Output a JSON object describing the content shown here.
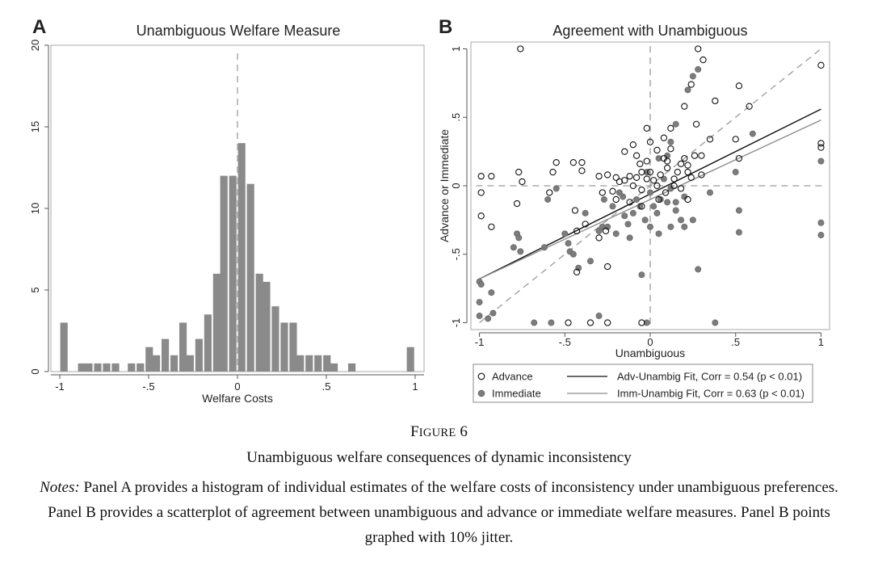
{
  "figure": {
    "label_first": "F",
    "label_rest": "IGURE",
    "label_number": "6",
    "title": "Unambiguous welfare consequences of dynamic inconsistency",
    "notes_lead": "Notes:",
    "notes_text": "Panel A provides a histogram of individual estimates of the welfare costs of inconsistency under unambiguous preferences. Panel B provides a scatterplot of agreement between unambiguous and advance or immediate welfare measures. Panel B points graphed with 10% jitter."
  },
  "chart_data": [
    {
      "type": "bar",
      "panel_letter": "A",
      "title": "Unambiguous Welfare Measure",
      "xlabel": "Welfare Costs",
      "ylabel": "",
      "xlim": [
        -1.05,
        1.05
      ],
      "ylim": [
        0,
        20
      ],
      "x_ticks": [
        "-1",
        "-.5",
        "0",
        ".5",
        "1"
      ],
      "y_ticks": [
        "0",
        "5",
        "10",
        "15",
        "20"
      ],
      "bin_width": 0.048,
      "reference_line_x": 0,
      "bar_color": "#8a8a8a",
      "bins_left": [
        -1.0,
        -0.9,
        -0.86,
        -0.81,
        -0.76,
        -0.71,
        -0.62,
        -0.57,
        -0.52,
        -0.48,
        -0.43,
        -0.38,
        -0.33,
        -0.29,
        -0.24,
        -0.19,
        -0.14,
        -0.1,
        -0.05,
        0.0,
        0.05,
        0.1,
        0.14,
        0.19,
        0.24,
        0.29,
        0.33,
        0.38,
        0.43,
        0.48,
        0.52,
        0.62,
        0.95
      ],
      "values": [
        3,
        0.5,
        0.5,
        0.5,
        0.5,
        0.5,
        0.5,
        0.5,
        1.5,
        1,
        2,
        1,
        3,
        1,
        2,
        3.5,
        6,
        12,
        12,
        14,
        11.5,
        6,
        5.5,
        4,
        3,
        3,
        1,
        1,
        1,
        1,
        0.5,
        0.5,
        1.5
      ]
    },
    {
      "type": "scatter",
      "panel_letter": "B",
      "title": "Agreement with Unambiguous",
      "xlabel": "Unambiguous",
      "ylabel": "Advance or Immediate",
      "xlim": [
        -1.05,
        1.05
      ],
      "ylim": [
        -1.05,
        1.05
      ],
      "x_ticks": [
        "-1",
        "-.5",
        "0",
        ".5",
        "1"
      ],
      "y_ticks": [
        "-1",
        "-.5",
        "0",
        ".5",
        "1"
      ],
      "reference_lines": {
        "x": 0,
        "y": 0,
        "diagonal": true
      },
      "series": [
        {
          "name": "Advance",
          "marker": "hollow-circle",
          "color": "#111111",
          "points": [
            [
              -0.99,
              0.07
            ],
            [
              -0.99,
              -0.05
            ],
            [
              -0.99,
              -0.22
            ],
            [
              -0.93,
              0.07
            ],
            [
              -0.93,
              -0.3
            ],
            [
              -0.76,
              1.0
            ],
            [
              -0.77,
              0.1
            ],
            [
              -0.75,
              0.03
            ],
            [
              -0.78,
              -0.13
            ],
            [
              -0.55,
              0.17
            ],
            [
              -0.57,
              0.1
            ],
            [
              -0.59,
              -0.05
            ],
            [
              -0.45,
              0.17
            ],
            [
              -0.44,
              -0.18
            ],
            [
              -0.4,
              0.17
            ],
            [
              -0.4,
              0.11
            ],
            [
              -0.38,
              -0.28
            ],
            [
              -0.43,
              -0.33
            ],
            [
              -0.43,
              -0.63
            ],
            [
              -0.3,
              0.07
            ],
            [
              -0.28,
              -0.05
            ],
            [
              -0.26,
              -0.33
            ],
            [
              -0.25,
              -0.59
            ],
            [
              -0.3,
              -0.38
            ],
            [
              -0.25,
              0.08
            ],
            [
              -0.2,
              0.06
            ],
            [
              -0.18,
              0.03
            ],
            [
              -0.22,
              -0.04
            ],
            [
              -0.15,
              0.04
            ],
            [
              -0.12,
              0.07
            ],
            [
              -0.1,
              0.0
            ],
            [
              -0.08,
              0.06
            ],
            [
              -0.05,
              0.1
            ],
            [
              -0.05,
              -0.03
            ],
            [
              -0.02,
              0.05
            ],
            [
              0.0,
              0.1
            ],
            [
              0.02,
              0.04
            ],
            [
              0.04,
              0.0
            ],
            [
              0.06,
              0.08
            ],
            [
              0.08,
              0.2
            ],
            [
              0.1,
              0.13
            ],
            [
              0.12,
              0.27
            ],
            [
              0.14,
              0.05
            ],
            [
              0.16,
              0.1
            ],
            [
              0.18,
              -0.02
            ],
            [
              0.2,
              0.2
            ],
            [
              0.22,
              0.15
            ],
            [
              0.24,
              0.06
            ],
            [
              0.26,
              0.22
            ],
            [
              0.27,
              0.45
            ],
            [
              0.3,
              0.22
            ],
            [
              0.31,
              0.92
            ],
            [
              0.28,
              1.0
            ],
            [
              0.24,
              0.74
            ],
            [
              0.2,
              0.58
            ],
            [
              0.38,
              0.62
            ],
            [
              0.35,
              0.34
            ],
            [
              0.3,
              0.08
            ],
            [
              0.52,
              0.73
            ],
            [
              0.58,
              0.58
            ],
            [
              0.5,
              0.34
            ],
            [
              0.52,
              0.2
            ],
            [
              1.0,
              0.88
            ],
            [
              1.0,
              0.31
            ],
            [
              1.0,
              0.28
            ],
            [
              -0.02,
              0.42
            ],
            [
              0.0,
              0.32
            ],
            [
              0.08,
              0.35
            ],
            [
              0.12,
              0.42
            ],
            [
              -0.1,
              0.3
            ],
            [
              -0.08,
              0.22
            ],
            [
              -0.15,
              0.25
            ],
            [
              0.05,
              -0.1
            ],
            [
              0.09,
              -0.05
            ],
            [
              -0.2,
              -0.1
            ],
            [
              -0.12,
              -0.12
            ],
            [
              -0.05,
              -0.15
            ],
            [
              -0.48,
              -1.0
            ],
            [
              -0.25,
              -1.0
            ],
            [
              -0.35,
              -1.0
            ],
            [
              -0.05,
              -1.0
            ],
            [
              0.22,
              0.1
            ],
            [
              0.18,
              0.16
            ],
            [
              0.14,
              0.0
            ],
            [
              -0.02,
              0.18
            ],
            [
              0.04,
              0.26
            ],
            [
              0.1,
              0.18
            ],
            [
              -0.06,
              0.16
            ],
            [
              0.22,
              -0.1
            ]
          ]
        },
        {
          "name": "Immediate",
          "marker": "filled-circle",
          "color": "#7c7c7c",
          "points": [
            [
              -1.0,
              -0.7
            ],
            [
              -0.99,
              -0.72
            ],
            [
              -1.0,
              -0.85
            ],
            [
              -1.0,
              -0.95
            ],
            [
              -0.95,
              -0.97
            ],
            [
              -0.92,
              -0.93
            ],
            [
              -0.93,
              -0.78
            ],
            [
              -0.8,
              -0.45
            ],
            [
              -0.78,
              -0.35
            ],
            [
              -0.77,
              -0.38
            ],
            [
              -0.76,
              -0.48
            ],
            [
              -0.62,
              -0.45
            ],
            [
              -0.6,
              -0.1
            ],
            [
              -0.55,
              -0.02
            ],
            [
              -0.5,
              -0.35
            ],
            [
              -0.48,
              -0.42
            ],
            [
              -0.47,
              -0.48
            ],
            [
              -0.45,
              -0.5
            ],
            [
              -0.42,
              -0.6
            ],
            [
              -0.38,
              -0.2
            ],
            [
              -0.35,
              -0.55
            ],
            [
              -0.3,
              -0.33
            ],
            [
              -0.28,
              -0.3
            ],
            [
              -0.27,
              -0.1
            ],
            [
              -0.25,
              -0.3
            ],
            [
              -0.2,
              -0.35
            ],
            [
              -0.16,
              -0.08
            ],
            [
              -0.13,
              -0.28
            ],
            [
              -0.12,
              -0.38
            ],
            [
              -0.1,
              -0.2
            ],
            [
              -0.08,
              -0.1
            ],
            [
              -0.06,
              -0.15
            ],
            [
              -0.03,
              -0.25
            ],
            [
              0.0,
              -0.05
            ],
            [
              0.02,
              -0.15
            ],
            [
              0.04,
              -0.2
            ],
            [
              0.06,
              -0.1
            ],
            [
              0.08,
              0.05
            ],
            [
              0.12,
              -0.02
            ],
            [
              0.15,
              -0.12
            ],
            [
              0.18,
              -0.25
            ],
            [
              0.2,
              -0.3
            ],
            [
              0.25,
              -0.25
            ],
            [
              0.28,
              -0.61
            ],
            [
              0.35,
              -0.05
            ],
            [
              0.38,
              -1.0
            ],
            [
              0.5,
              0.1
            ],
            [
              0.52,
              -0.18
            ],
            [
              0.52,
              -0.34
            ],
            [
              0.6,
              0.38
            ],
            [
              1.0,
              0.18
            ],
            [
              1.0,
              -0.27
            ],
            [
              1.0,
              -0.36
            ],
            [
              0.25,
              0.8
            ],
            [
              0.28,
              0.85
            ],
            [
              0.22,
              0.7
            ],
            [
              0.15,
              0.45
            ],
            [
              0.12,
              0.32
            ],
            [
              0.1,
              0.22
            ],
            [
              0.05,
              0.2
            ],
            [
              -0.02,
              0.1
            ],
            [
              0.15,
              -0.18
            ],
            [
              0.2,
              -0.08
            ],
            [
              -0.05,
              -0.65
            ],
            [
              -0.02,
              -1.0
            ],
            [
              -0.3,
              -0.95
            ],
            [
              -0.58,
              -1.0
            ],
            [
              -0.68,
              -1.0
            ],
            [
              0.05,
              -0.35
            ],
            [
              0.12,
              -0.3
            ],
            [
              -0.15,
              -0.22
            ],
            [
              -0.22,
              -0.15
            ],
            [
              -0.18,
              -0.05
            ],
            [
              0.0,
              -0.3
            ],
            [
              0.1,
              -0.12
            ]
          ]
        }
      ],
      "fits": [
        {
          "name": "Adv-Unambig Fit, Corr = 0.54 (p < 0.01)",
          "intercept": -0.06,
          "slope": 0.62,
          "color": "#111111"
        },
        {
          "name": "Imm-Unambig Fit, Corr = 0.63 (p < 0.01)",
          "intercept": -0.1,
          "slope": 0.58,
          "color": "#8c8c8c"
        }
      ],
      "legend": [
        {
          "label": "Advance",
          "kind": "hollow-circle"
        },
        {
          "label": "Adv-Unambig Fit, Corr = 0.54 (p < 0.01)",
          "kind": "line-dark"
        },
        {
          "label": "Immediate",
          "kind": "filled-circle"
        },
        {
          "label": "Imm-Unambig Fit, Corr = 0.63 (p < 0.01)",
          "kind": "line-light"
        }
      ],
      "legend_position": "bottom"
    }
  ]
}
